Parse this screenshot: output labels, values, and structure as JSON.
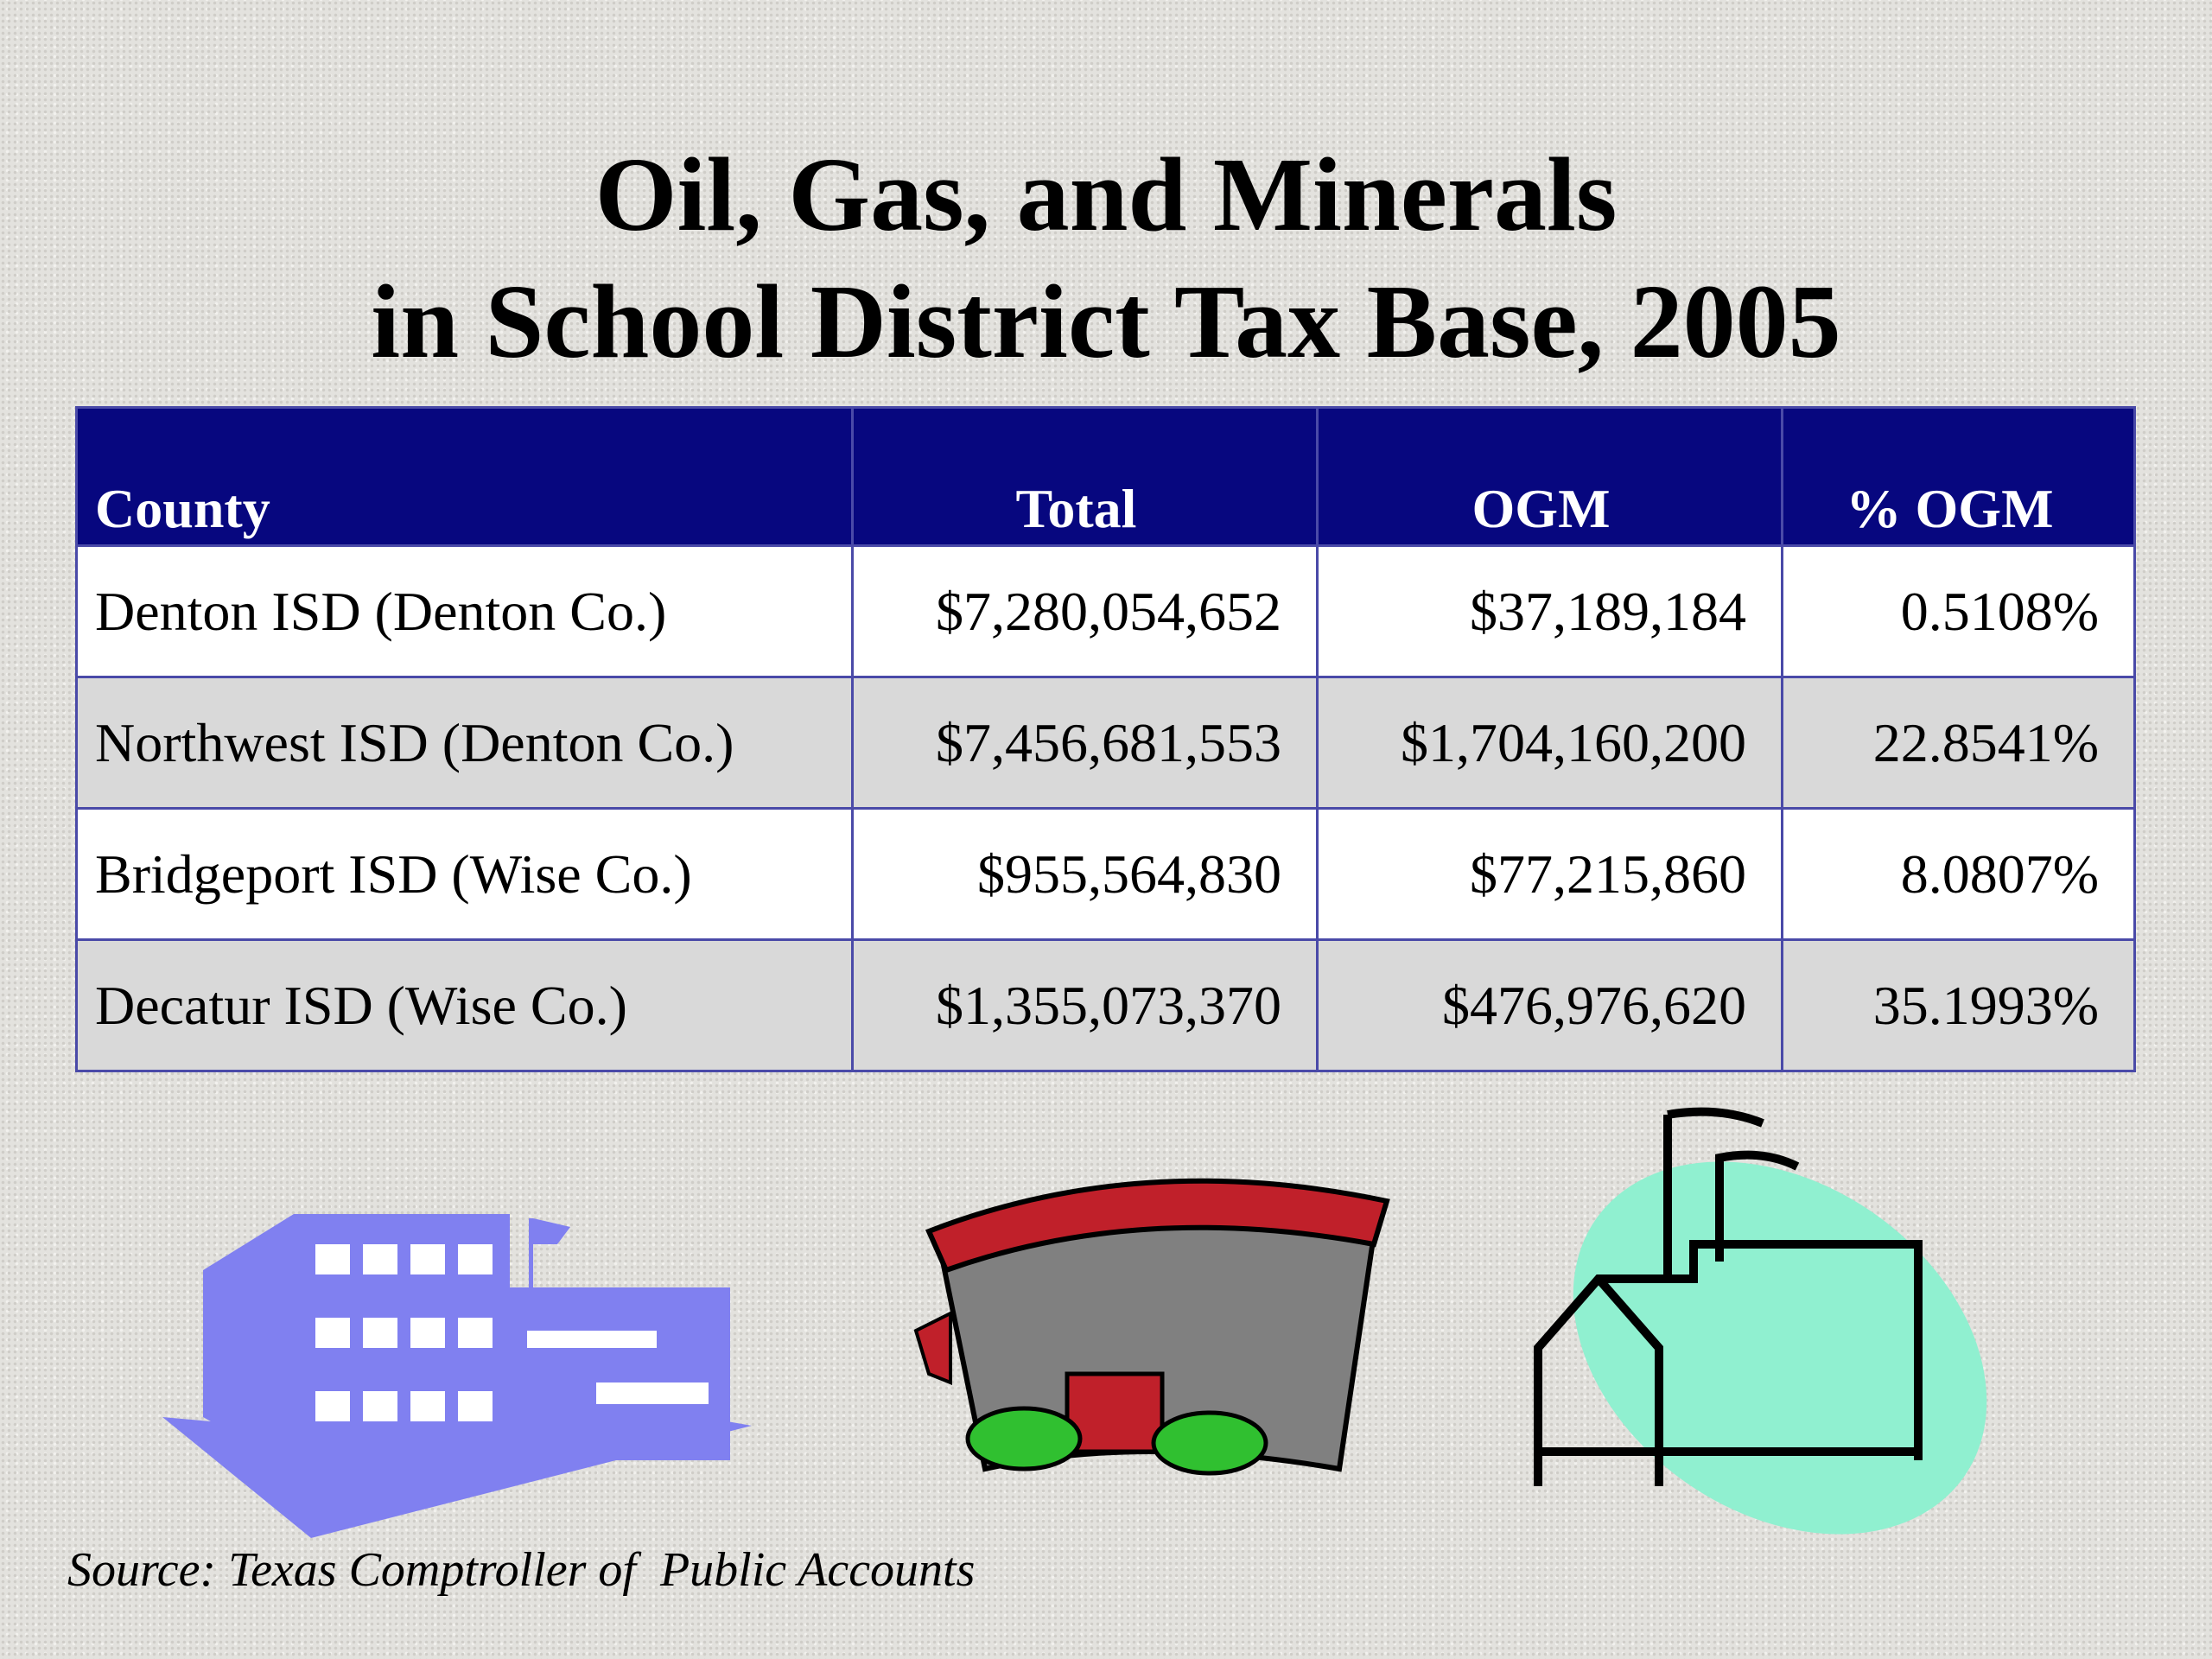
{
  "title_lines": [
    "Oil, Gas, and Minerals",
    "in School District Tax Base, 2005"
  ],
  "table": {
    "header": [
      "County",
      "Total",
      "OGM",
      "% OGM"
    ],
    "rows": [
      [
        "Denton ISD (Denton Co.)",
        "$7,280,054,652",
        "$37,189,184",
        "0.5108%"
      ],
      [
        "Northwest ISD (Denton Co.)",
        "$7,456,681,553",
        "$1,704,160,200",
        "22.8541%"
      ],
      [
        "Bridgeport ISD (Wise Co.)",
        "$955,564,830",
        "$77,215,860",
        "8.0807%"
      ],
      [
        "Decatur ISD (Wise Co.)",
        "$1,355,073,370",
        "$476,976,620",
        "35.1993%"
      ]
    ]
  },
  "source": "Source: Texas Comptroller of  Public Accounts"
}
